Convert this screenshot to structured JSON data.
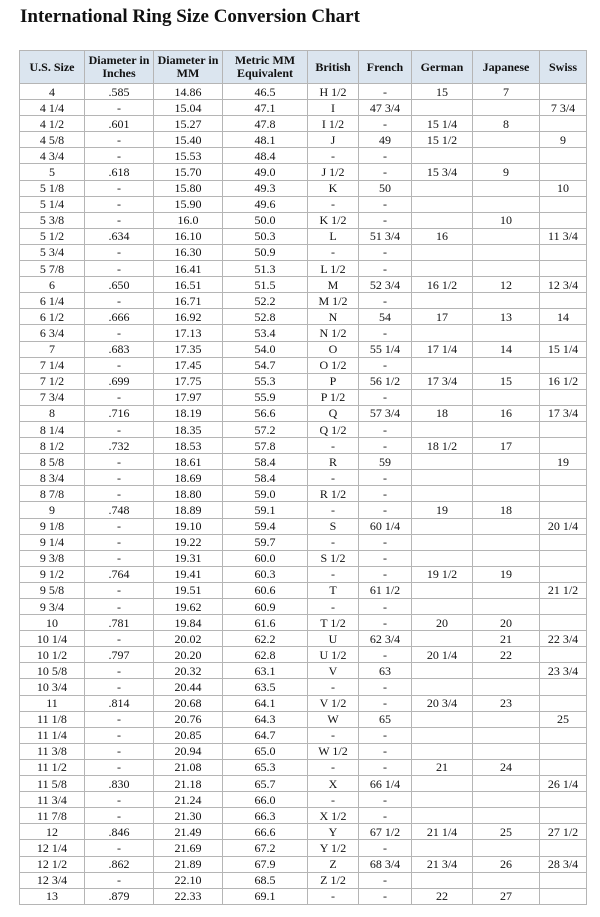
{
  "title": "International Ring Size Conversion Chart",
  "headers": [
    "U.S. Size",
    "Diameter in Inches",
    "Diameter in MM",
    "Metric MM Equivalent",
    "British",
    "French",
    "German",
    "Japanese",
    "Swiss"
  ],
  "rows": [
    [
      "4",
      ".585",
      "14.86",
      "46.5",
      "H 1/2",
      "-",
      "15",
      "7",
      ""
    ],
    [
      "4 1/4",
      "-",
      "15.04",
      "47.1",
      "I",
      "47 3/4",
      "",
      "",
      "7 3/4"
    ],
    [
      "4 1/2",
      ".601",
      "15.27",
      "47.8",
      "I 1/2",
      "-",
      "15 1/4",
      "8",
      ""
    ],
    [
      "4 5/8",
      "-",
      "15.40",
      "48.1",
      "J",
      "49",
      "15 1/2",
      "",
      "9"
    ],
    [
      "4 3/4",
      "-",
      "15.53",
      "48.4",
      "-",
      "-",
      "",
      "",
      ""
    ],
    [
      "5",
      ".618",
      "15.70",
      "49.0",
      "J 1/2",
      "-",
      "15 3/4",
      "9",
      ""
    ],
    [
      "5 1/8",
      "-",
      "15.80",
      "49.3",
      "K",
      "50",
      "",
      "",
      "10"
    ],
    [
      "5 1/4",
      "-",
      "15.90",
      "49.6",
      "-",
      "-",
      "",
      "",
      ""
    ],
    [
      "5 3/8",
      "-",
      "16.0",
      "50.0",
      "K 1/2",
      "-",
      "",
      "10",
      ""
    ],
    [
      "5 1/2",
      ".634",
      "16.10",
      "50.3",
      "L",
      "51 3/4",
      "16",
      "",
      "11 3/4"
    ],
    [
      "5 3/4",
      "-",
      "16.30",
      "50.9",
      "-",
      "-",
      "",
      "",
      ""
    ],
    [
      "5 7/8",
      "-",
      "16.41",
      "51.3",
      "L 1/2",
      "-",
      "",
      "",
      ""
    ],
    [
      "6",
      ".650",
      "16.51",
      "51.5",
      "M",
      "52 3/4",
      "16 1/2",
      "12",
      "12 3/4"
    ],
    [
      "6 1/4",
      "-",
      "16.71",
      "52.2",
      "M 1/2",
      "-",
      "",
      "",
      ""
    ],
    [
      "6 1/2",
      ".666",
      "16.92",
      "52.8",
      "N",
      "54",
      "17",
      "13",
      "14"
    ],
    [
      "6 3/4",
      "-",
      "17.13",
      "53.4",
      "N 1/2",
      "-",
      "",
      "",
      ""
    ],
    [
      "7",
      ".683",
      "17.35",
      "54.0",
      "O",
      "55 1/4",
      "17 1/4",
      "14",
      "15 1/4"
    ],
    [
      "7 1/4",
      "-",
      "17.45",
      "54.7",
      "O 1/2",
      "-",
      "",
      "",
      ""
    ],
    [
      "7 1/2",
      ".699",
      "17.75",
      "55.3",
      "P",
      "56 1/2",
      "17 3/4",
      "15",
      "16 1/2"
    ],
    [
      "7 3/4",
      "-",
      "17.97",
      "55.9",
      "P 1/2",
      "-",
      "",
      "",
      ""
    ],
    [
      "8",
      ".716",
      "18.19",
      "56.6",
      "Q",
      "57 3/4",
      "18",
      "16",
      "17 3/4"
    ],
    [
      "8 1/4",
      "-",
      "18.35",
      "57.2",
      "Q 1/2",
      "-",
      "",
      "",
      ""
    ],
    [
      "8 1/2",
      ".732",
      "18.53",
      "57.8",
      "-",
      "-",
      "18 1/2",
      "17",
      ""
    ],
    [
      "8 5/8",
      "-",
      "18.61",
      "58.4",
      "R",
      "59",
      "",
      "",
      "19"
    ],
    [
      "8 3/4",
      "-",
      "18.69",
      "58.4",
      "-",
      "-",
      "",
      "",
      ""
    ],
    [
      "8 7/8",
      "-",
      "18.80",
      "59.0",
      "R 1/2",
      "-",
      "",
      "",
      ""
    ],
    [
      "9",
      ".748",
      "18.89",
      "59.1",
      "-",
      "-",
      "19",
      "18",
      ""
    ],
    [
      "9 1/8",
      "-",
      "19.10",
      "59.4",
      "S",
      "60 1/4",
      "",
      "",
      "20 1/4"
    ],
    [
      "9 1/4",
      "-",
      "19.22",
      "59.7",
      "-",
      "-",
      "",
      "",
      ""
    ],
    [
      "9 3/8",
      "-",
      "19.31",
      "60.0",
      "S 1/2",
      "-",
      "",
      "",
      ""
    ],
    [
      "9 1/2",
      ".764",
      "19.41",
      "60.3",
      "-",
      "-",
      "19 1/2",
      "19",
      ""
    ],
    [
      "9 5/8",
      "-",
      "19.51",
      "60.6",
      "T",
      "61 1/2",
      "",
      "",
      "21 1/2"
    ],
    [
      "9 3/4",
      "-",
      "19.62",
      "60.9",
      "-",
      "-",
      "",
      "",
      ""
    ],
    [
      "10",
      ".781",
      "19.84",
      "61.6",
      "T 1/2",
      "-",
      "20",
      "20",
      ""
    ],
    [
      "10 1/4",
      "-",
      "20.02",
      "62.2",
      "U",
      "62 3/4",
      "",
      "21",
      "22 3/4"
    ],
    [
      "10 1/2",
      ".797",
      "20.20",
      "62.8",
      "U 1/2",
      "-",
      "20 1/4",
      "22",
      ""
    ],
    [
      "10 5/8",
      "-",
      "20.32",
      "63.1",
      "V",
      "63",
      "",
      "",
      "23 3/4"
    ],
    [
      "10 3/4",
      "-",
      "20.44",
      "63.5",
      "-",
      "-",
      "",
      "",
      ""
    ],
    [
      "11",
      ".814",
      "20.68",
      "64.1",
      "V 1/2",
      "-",
      "20 3/4",
      "23",
      ""
    ],
    [
      "11 1/8",
      "-",
      "20.76",
      "64.3",
      "W",
      "65",
      "",
      "",
      "25"
    ],
    [
      "11 1/4",
      "-",
      "20.85",
      "64.7",
      "-",
      "-",
      "",
      "",
      ""
    ],
    [
      "11 3/8",
      "-",
      "20.94",
      "65.0",
      "W 1/2",
      "-",
      "",
      "",
      ""
    ],
    [
      "11 1/2",
      "-",
      "21.08",
      "65.3",
      "-",
      "-",
      "21",
      "24",
      ""
    ],
    [
      "11 5/8",
      ".830",
      "21.18",
      "65.7",
      "X",
      "66 1/4",
      "",
      "",
      "26 1/4"
    ],
    [
      "11 3/4",
      "-",
      "21.24",
      "66.0",
      "-",
      "-",
      "",
      "",
      ""
    ],
    [
      "11 7/8",
      "-",
      "21.30",
      "66.3",
      "X 1/2",
      "-",
      "",
      "",
      ""
    ],
    [
      "12",
      ".846",
      "21.49",
      "66.6",
      "Y",
      "67 1/2",
      "21 1/4",
      "25",
      "27 1/2"
    ],
    [
      "12 1/4",
      "-",
      "21.69",
      "67.2",
      "Y 1/2",
      "-",
      "",
      "",
      ""
    ],
    [
      "12 1/2",
      ".862",
      "21.89",
      "67.9",
      "Z",
      "68 3/4",
      "21 3/4",
      "26",
      "28 3/4"
    ],
    [
      "12 3/4",
      "-",
      "22.10",
      "68.5",
      "Z 1/2",
      "-",
      "",
      "",
      ""
    ],
    [
      "13",
      ".879",
      "22.33",
      "69.1",
      "-",
      "-",
      "22",
      "27",
      ""
    ]
  ]
}
